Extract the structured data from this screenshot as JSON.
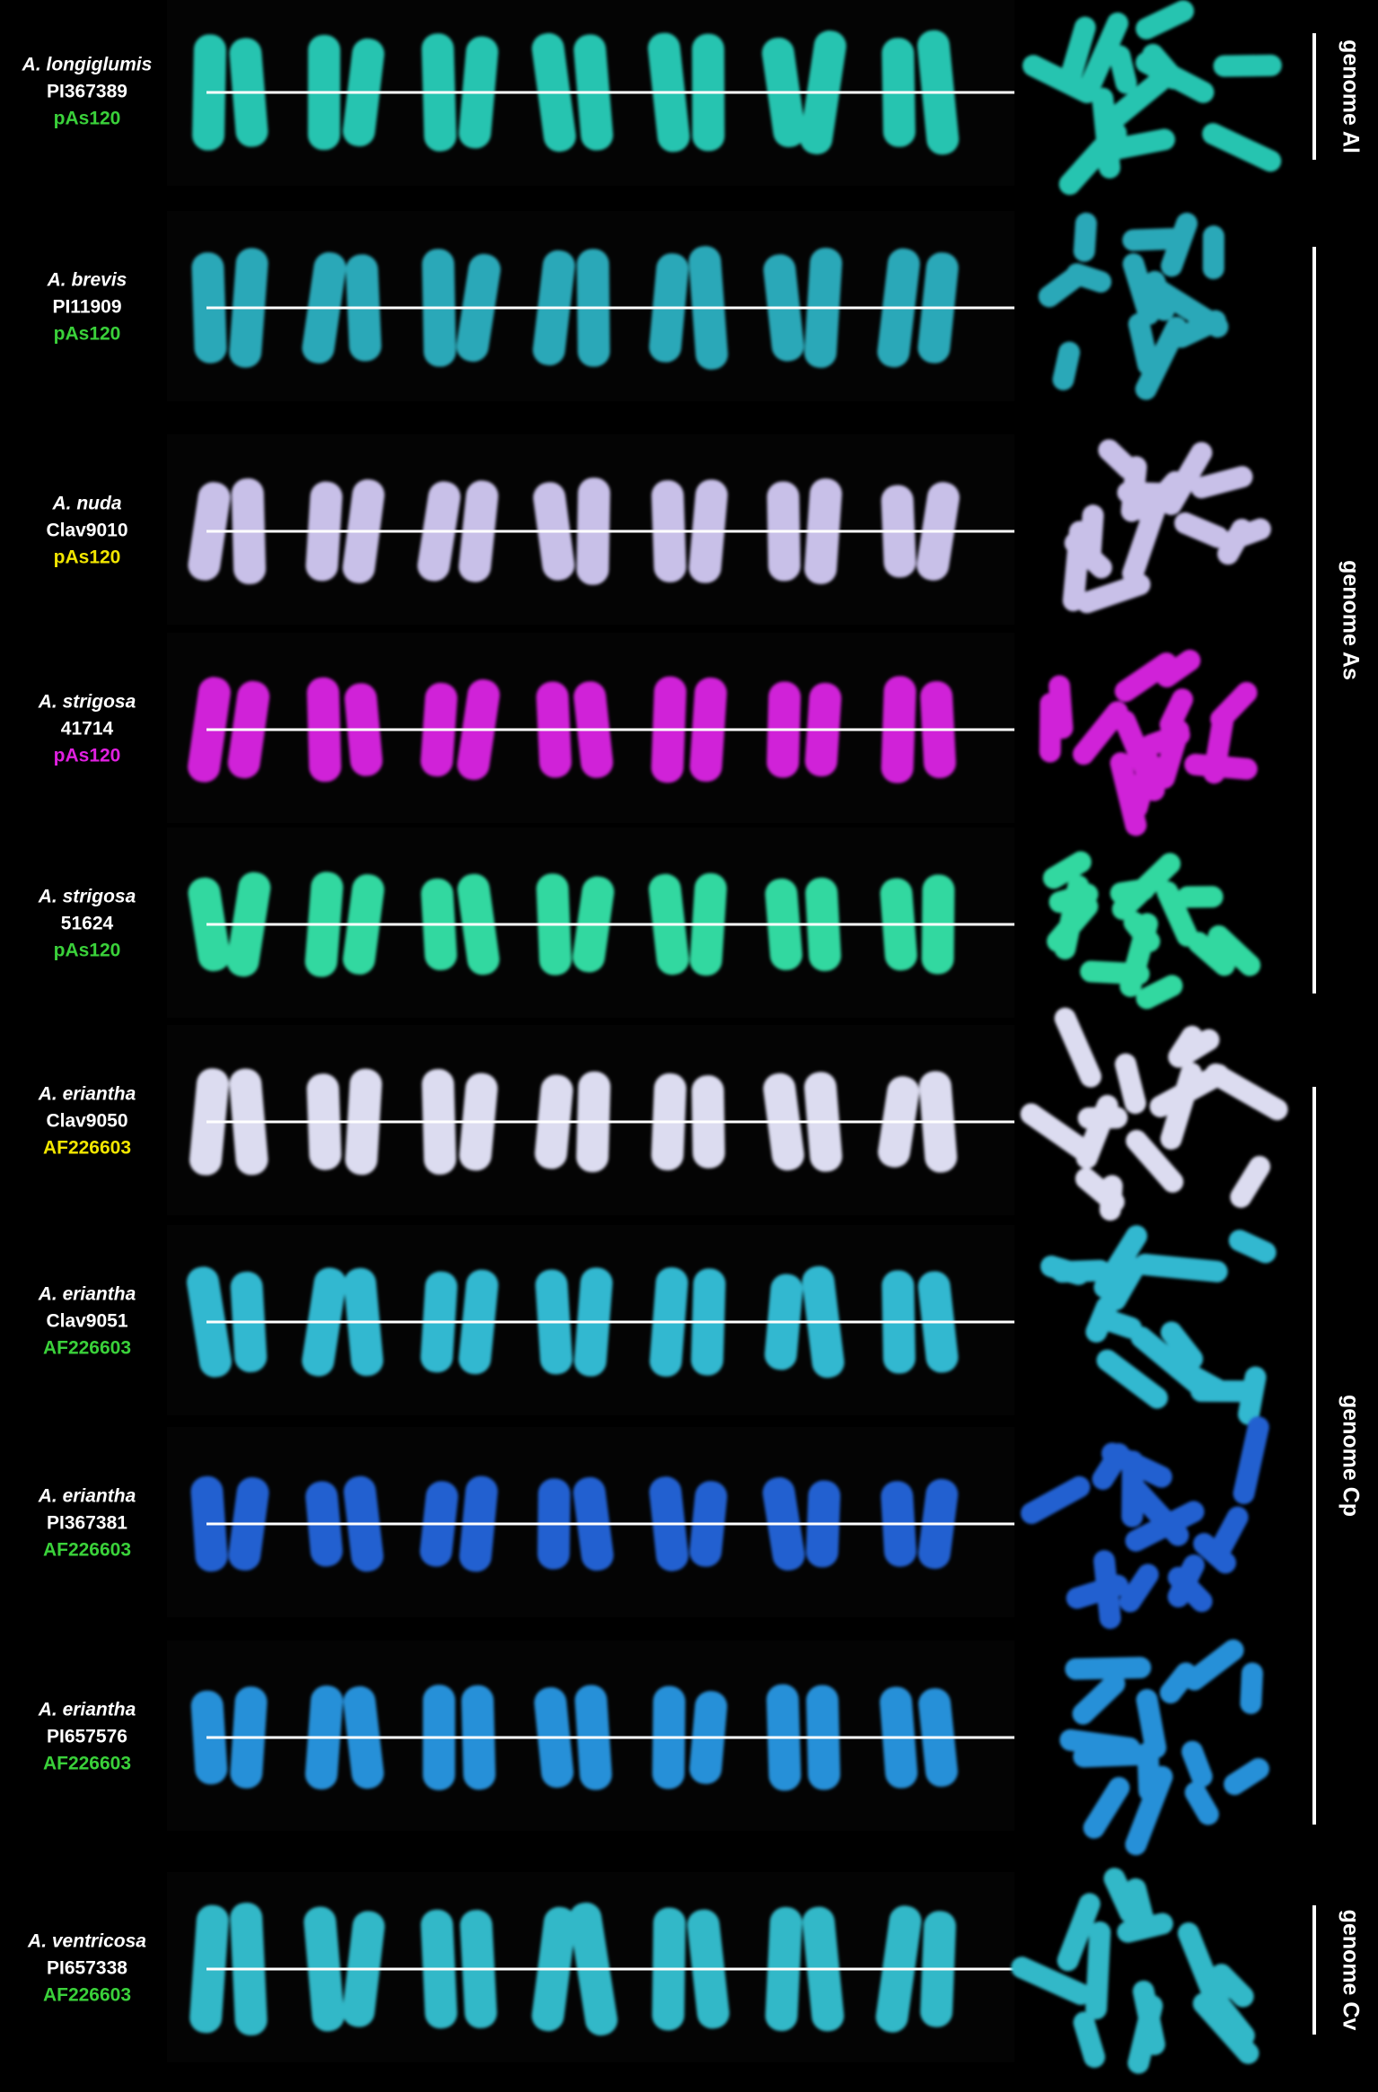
{
  "rows": [
    {
      "species": "A. longiglumis",
      "accession": "PI367389",
      "probe": "pAs120",
      "probe_color": "#3ad13a"
    },
    {
      "species": "A. brevis",
      "accession": "PI11909",
      "probe": "pAs120",
      "probe_color": "#3ad13a"
    },
    {
      "species": "A. nuda",
      "accession": "Clav9010",
      "probe": "pAs120",
      "probe_color": "#f2e600"
    },
    {
      "species": "A. strigosa",
      "accession": "41714",
      "probe": "pAs120",
      "probe_color": "#e020e0"
    },
    {
      "species": "A. strigosa",
      "accession": "51624",
      "probe": "pAs120",
      "probe_color": "#3ad13a"
    },
    {
      "species": "A. eriantha",
      "accession": "Clav9050",
      "probe": "AF226603",
      "probe_color": "#f2e600"
    },
    {
      "species": "A. eriantha",
      "accession": "Clav9051",
      "probe": "AF226603",
      "probe_color": "#3ad13a"
    },
    {
      "species": "A. eriantha",
      "accession": "PI367381",
      "probe": "AF226603",
      "probe_color": "#3ad13a"
    },
    {
      "species": "A. eriantha",
      "accession": "PI657576",
      "probe": "AF226603",
      "probe_color": "#3ad13a"
    },
    {
      "species": "A. ventricosa",
      "accession": "PI657338",
      "probe": "AF226603",
      "probe_color": "#3ad13a"
    }
  ],
  "genomes": [
    {
      "label": "genome Al"
    },
    {
      "label": "genome As"
    },
    {
      "label": "genome Cp"
    },
    {
      "label": "genome Cv"
    }
  ]
}
